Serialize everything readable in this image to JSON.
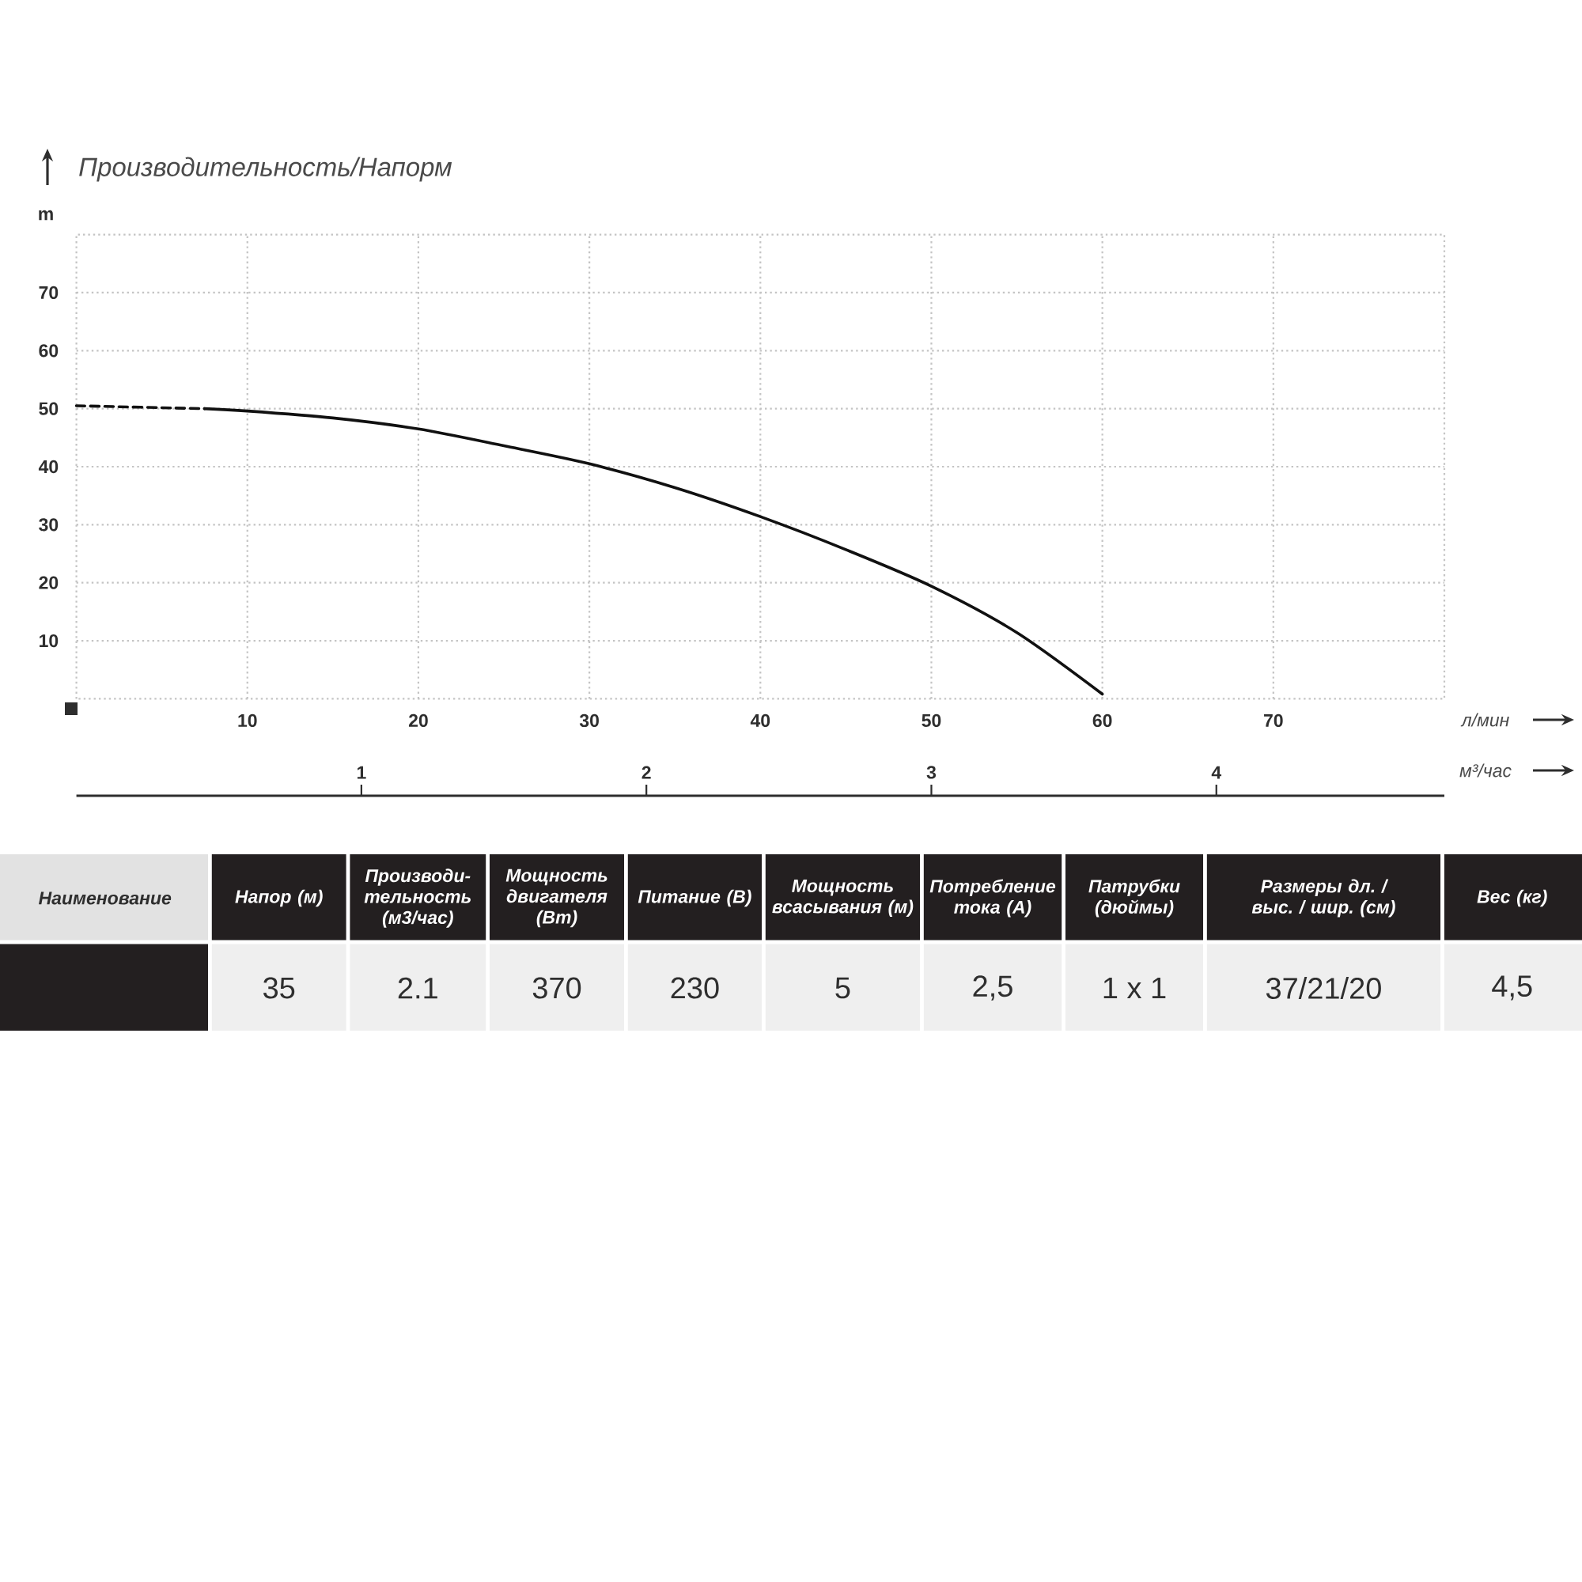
{
  "chart_data": {
    "type": "line",
    "title": "Производительность/Напорм",
    "ylabel": "m",
    "xlabel": "л/мин",
    "x2label": "м³/час",
    "xlim": [
      0,
      80
    ],
    "ylim": [
      0,
      80
    ],
    "xticks": [
      10,
      20,
      30,
      40,
      50,
      60,
      70
    ],
    "yticks": [
      10,
      20,
      30,
      40,
      50,
      60,
      70
    ],
    "x2lim": [
      0,
      4.8
    ],
    "x2ticks": [
      1,
      2,
      3,
      4
    ],
    "grid": true,
    "series": [
      {
        "color": "#111111",
        "line_style": "dashed",
        "x": [
          0,
          7.5
        ],
        "values": [
          50.5,
          50
        ]
      },
      {
        "color": "#111111",
        "line_style": "solid",
        "x": [
          7.5,
          10,
          15,
          20,
          25,
          30,
          35,
          40,
          45,
          50,
          55,
          60
        ],
        "values": [
          50,
          49.6,
          48.4,
          46.5,
          43.6,
          40.5,
          36.4,
          31.4,
          25.7,
          19.4,
          11.4,
          0.8
        ]
      }
    ],
    "annotations": [
      "Наименование",
      "Напор (м)",
      "Производи-тельность (м3/час)",
      "Мощность двигателя (Вт)",
      "Питание (В)",
      "Мощность всасывания (м)",
      "Потребление тока (А)",
      "Патрубки (дюймы)",
      "Размеры дл. / выс. / шир. (см)",
      "Вес (кг)",
      "35",
      "2.1",
      "370",
      "230",
      "5",
      "2,5",
      "1 x 1",
      "37/21/20",
      "4,5"
    ]
  }
}
